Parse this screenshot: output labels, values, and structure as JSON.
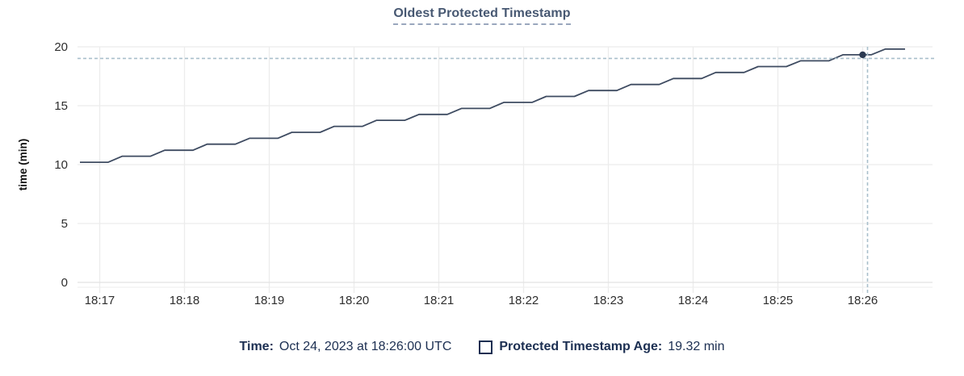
{
  "title": "Oldest Protected Timestamp",
  "tooltip": {
    "time_label": "Time:",
    "time_value": "Oct 24, 2023 at 18:26:00 UTC",
    "series_label": "Protected Timestamp Age:",
    "series_value": "19.32 min"
  },
  "colors": {
    "title": "#475872",
    "line": "#3e4b61",
    "dot": "#2c3a52",
    "grid": "#ececec",
    "grid_major": "#e2e2e2",
    "axis_base": "#f0f0f0",
    "crosshair": "#a9bfcb",
    "axis_text": "#2e2e2e",
    "legend_text": "#1c2f52"
  },
  "chart_data": {
    "type": "line",
    "title": "Oldest Protected Timestamp",
    "xlabel": "",
    "ylabel": "time (min)",
    "ylim": [
      0,
      20
    ],
    "yticks": [
      0,
      5,
      10,
      15,
      20
    ],
    "xticks": [
      "18:17",
      "18:18",
      "18:19",
      "18:20",
      "18:21",
      "18:22",
      "18:23",
      "18:24",
      "18:25",
      "18:26"
    ],
    "x_range": [
      "18:16:44",
      "18:26:49"
    ],
    "grid": true,
    "legend_position": "bottom",
    "series_name": "Protected Timestamp Age",
    "hover": {
      "time": "18:26:00",
      "value": 19.32,
      "value_text": "19.32 min"
    },
    "points": [
      [
        "18:16:46",
        10.2
      ],
      [
        "18:17:06",
        10.2
      ],
      [
        "18:17:16",
        10.71
      ],
      [
        "18:17:36",
        10.71
      ],
      [
        "18:17:46",
        11.22
      ],
      [
        "18:18:06",
        11.22
      ],
      [
        "18:18:16",
        11.73
      ],
      [
        "18:18:36",
        11.73
      ],
      [
        "18:18:46",
        12.23
      ],
      [
        "18:19:06",
        12.23
      ],
      [
        "18:19:16",
        12.74
      ],
      [
        "18:19:36",
        12.74
      ],
      [
        "18:19:46",
        13.25
      ],
      [
        "18:20:06",
        13.25
      ],
      [
        "18:20:16",
        13.76
      ],
      [
        "18:20:36",
        13.76
      ],
      [
        "18:20:46",
        14.26
      ],
      [
        "18:21:06",
        14.26
      ],
      [
        "18:21:16",
        14.77
      ],
      [
        "18:21:36",
        14.77
      ],
      [
        "18:21:46",
        15.28
      ],
      [
        "18:22:06",
        15.28
      ],
      [
        "18:22:16",
        15.79
      ],
      [
        "18:22:36",
        15.79
      ],
      [
        "18:22:46",
        16.29
      ],
      [
        "18:23:06",
        16.29
      ],
      [
        "18:23:16",
        16.8
      ],
      [
        "18:23:36",
        16.8
      ],
      [
        "18:23:46",
        17.31
      ],
      [
        "18:24:06",
        17.31
      ],
      [
        "18:24:16",
        17.82
      ],
      [
        "18:24:36",
        17.82
      ],
      [
        "18:24:46",
        18.32
      ],
      [
        "18:25:06",
        18.32
      ],
      [
        "18:25:16",
        18.81
      ],
      [
        "18:25:36",
        18.81
      ],
      [
        "18:25:46",
        19.32
      ],
      [
        "18:26:06",
        19.32
      ],
      [
        "18:26:16",
        19.81
      ],
      [
        "18:26:30",
        19.81
      ]
    ]
  }
}
